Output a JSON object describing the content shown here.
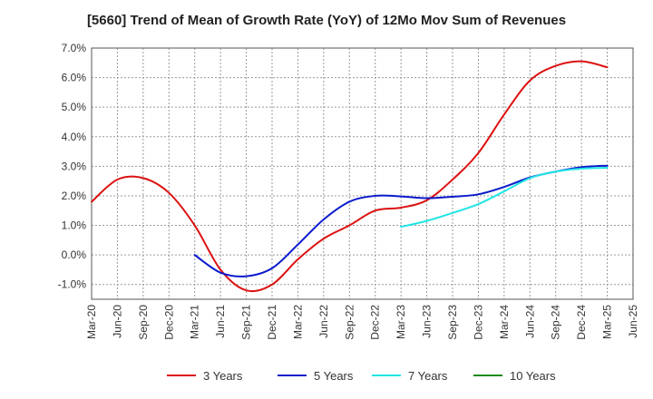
{
  "chart_data": {
    "type": "line",
    "title": "[5660]  Trend of Mean of Growth Rate (YoY) of 12Mo Mov Sum of Revenues",
    "xlabel": "",
    "ylabel": "",
    "ylim": [
      -1.5,
      7.0
    ],
    "y_ticks": [
      -1.0,
      0.0,
      1.0,
      2.0,
      3.0,
      4.0,
      5.0,
      6.0,
      7.0
    ],
    "y_tick_labels": [
      "-1.0%",
      "0.0%",
      "1.0%",
      "2.0%",
      "3.0%",
      "4.0%",
      "5.0%",
      "6.0%",
      "7.0%"
    ],
    "x_tick_labels": [
      "Mar-20",
      "Jun-20",
      "Sep-20",
      "Dec-20",
      "Mar-21",
      "Jun-21",
      "Sep-21",
      "Dec-21",
      "Mar-22",
      "Jun-22",
      "Sep-22",
      "Dec-22",
      "Mar-23",
      "Jun-23",
      "Sep-23",
      "Dec-23",
      "Mar-24",
      "Jun-24",
      "Sep-24",
      "Dec-24",
      "Mar-25",
      "Jun-25"
    ],
    "grid": true,
    "legend_position": "bottom",
    "series": [
      {
        "name": "3 Years",
        "color": "#dd1111",
        "x": [
          0,
          1,
          2,
          3,
          4,
          5,
          6,
          7,
          8,
          9,
          10,
          11,
          12,
          13,
          14,
          15,
          16,
          17,
          18,
          19,
          20
        ],
        "values": [
          1.8,
          2.55,
          2.6,
          2.1,
          1.0,
          -0.5,
          -1.2,
          -1.0,
          -0.15,
          0.55,
          1.0,
          1.5,
          1.6,
          1.85,
          2.55,
          3.45,
          4.75,
          5.9,
          6.4,
          6.55,
          6.35
        ]
      },
      {
        "name": "5 Years",
        "color": "#0a1acc",
        "x": [
          4,
          5,
          6,
          7,
          8,
          9,
          10,
          11,
          12,
          13,
          14,
          15,
          16,
          17,
          18,
          19,
          20
        ],
        "values": [
          0.0,
          -0.6,
          -0.72,
          -0.45,
          0.35,
          1.2,
          1.8,
          2.0,
          1.98,
          1.92,
          1.97,
          2.05,
          2.3,
          2.62,
          2.82,
          2.97,
          3.02
        ]
      },
      {
        "name": "7 Years",
        "color": "#22e5e5",
        "x": [
          12,
          13,
          14,
          15,
          16,
          17,
          18,
          19,
          20
        ],
        "values": [
          0.95,
          1.15,
          1.42,
          1.72,
          2.15,
          2.6,
          2.82,
          2.92,
          2.95
        ]
      },
      {
        "name": "10 Years",
        "color": "#1a8a1a",
        "x": [],
        "values": []
      }
    ]
  }
}
